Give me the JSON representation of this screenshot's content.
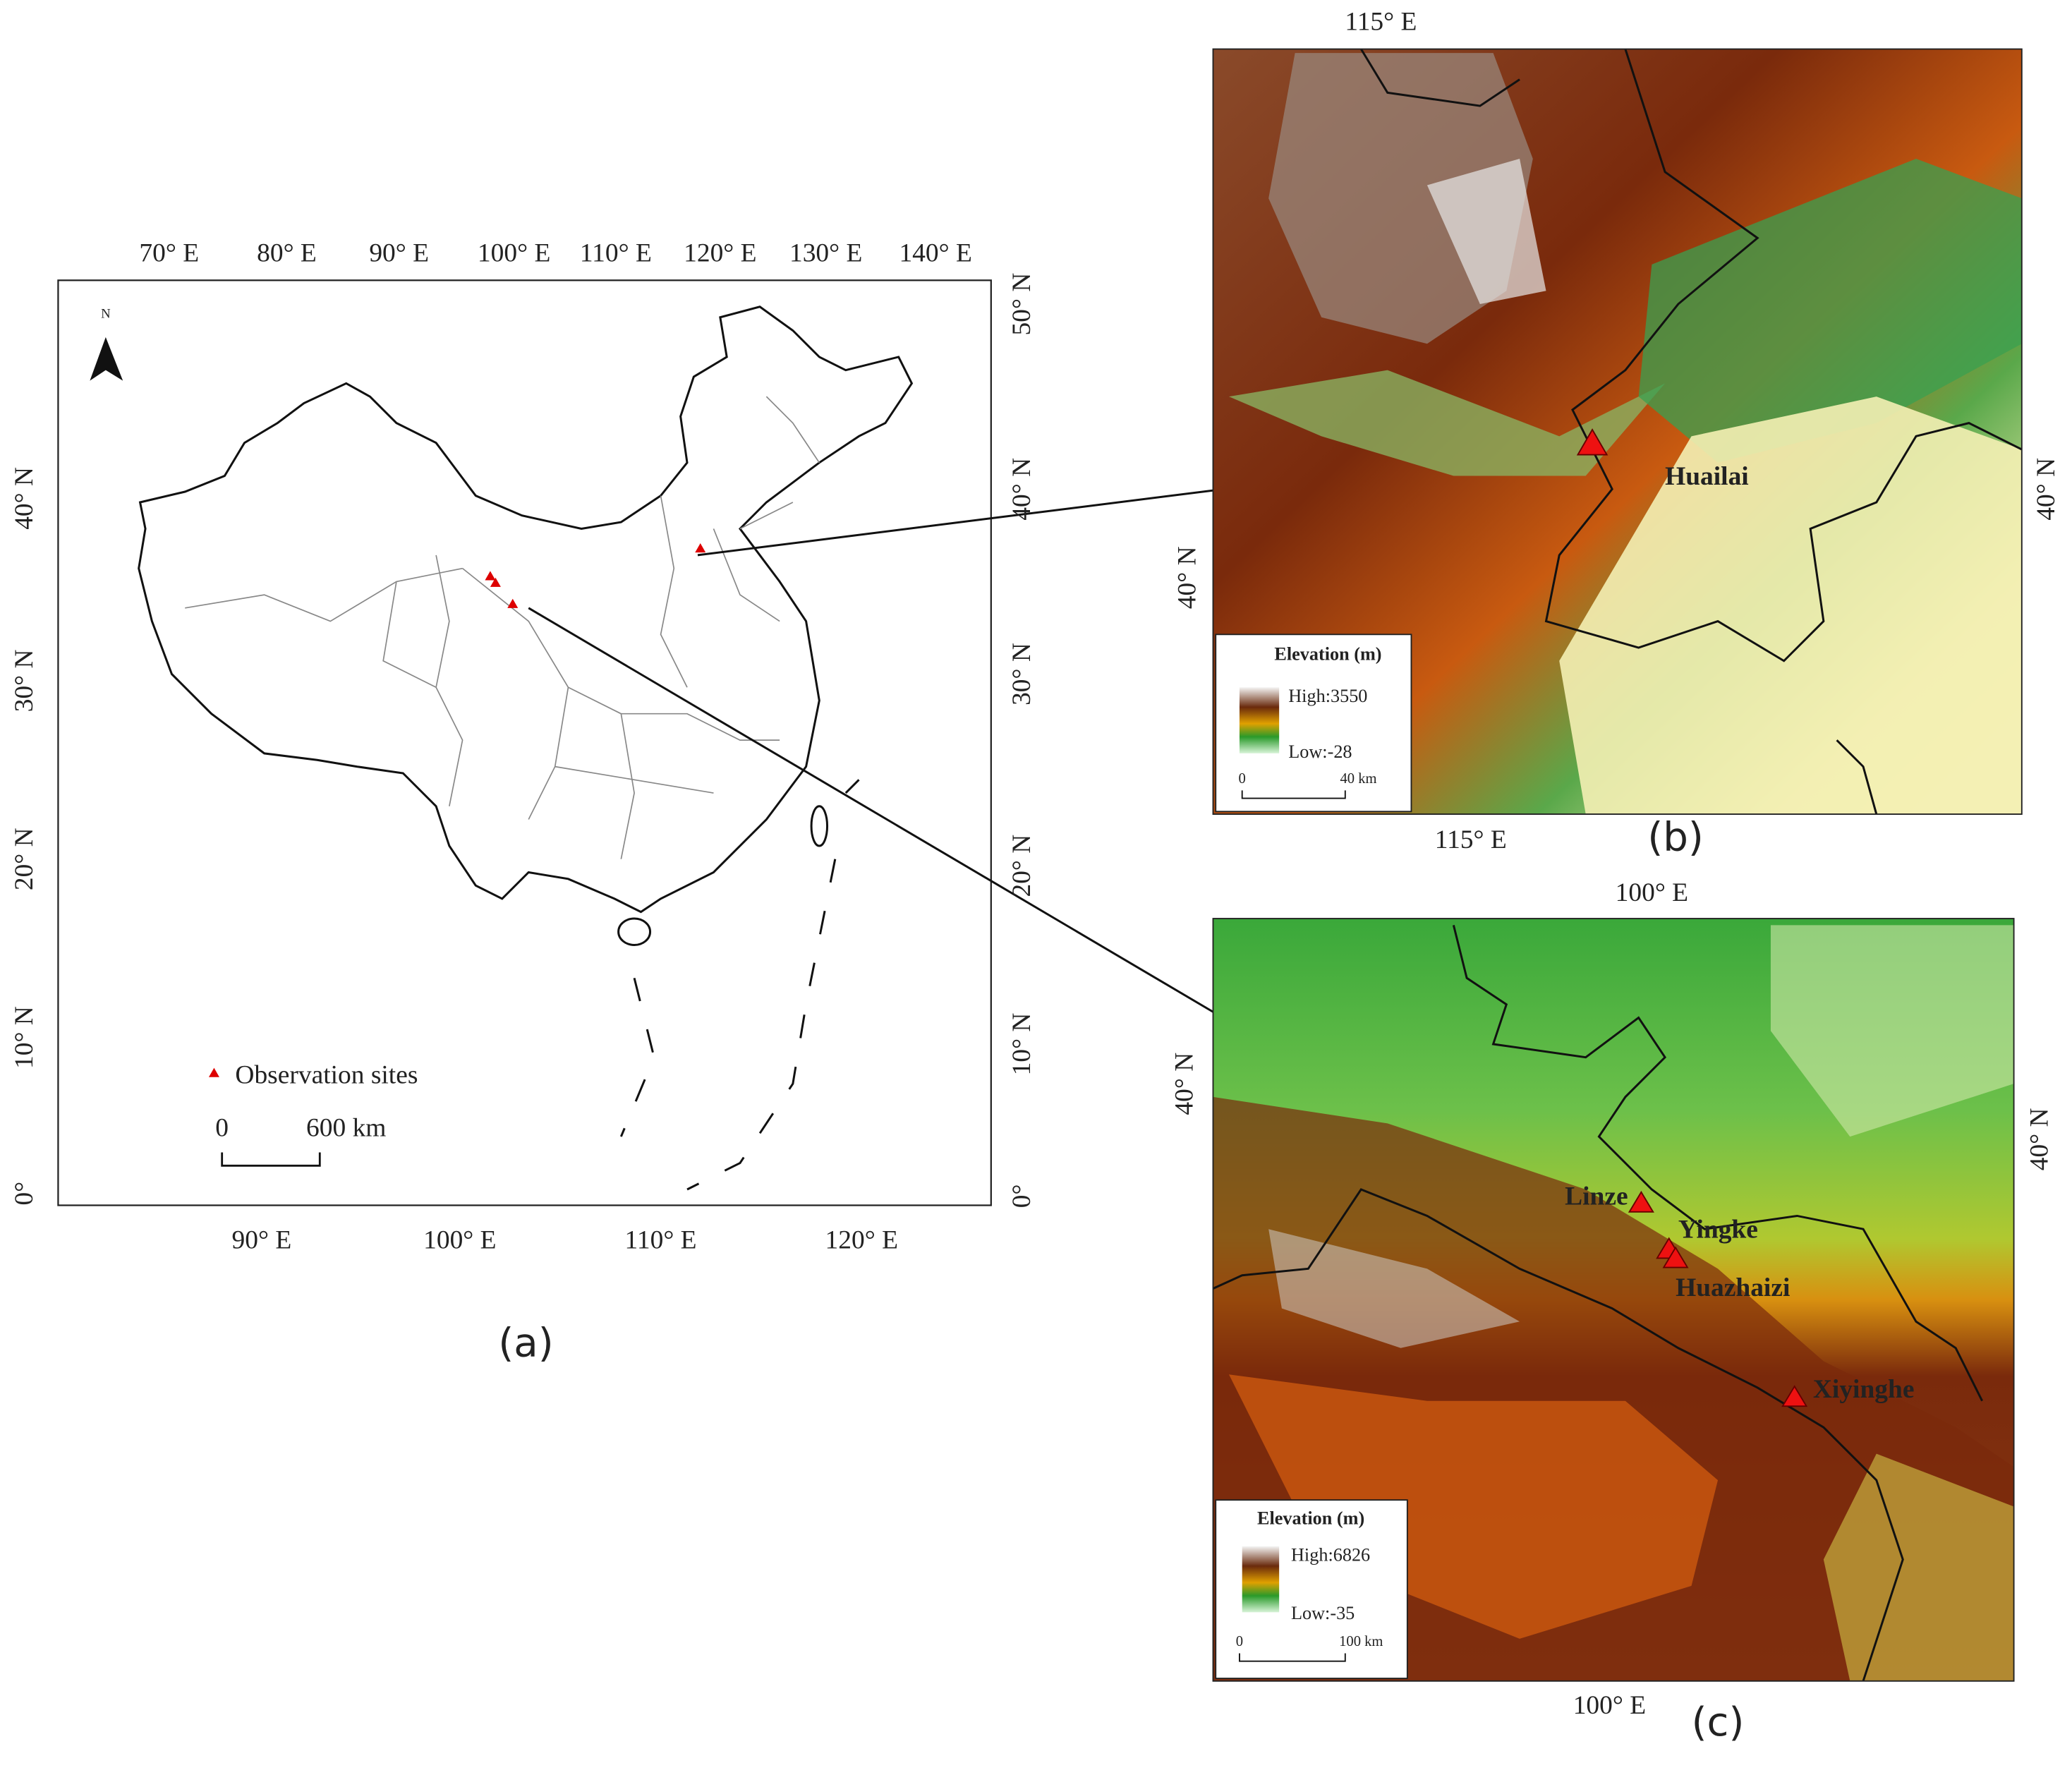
{
  "panel_a": {
    "label": "(a)",
    "top_labels": [
      "70° E",
      "80° E",
      "90° E",
      "100° E",
      "110° E",
      "120° E",
      "130° E",
      "140° E"
    ],
    "right_labels": [
      "50° N",
      "40° N",
      "30° N",
      "20° N",
      "10° N",
      "0°"
    ],
    "left_labels": [
      "40° N",
      "30° N",
      "20° N",
      "10° N",
      "0°"
    ],
    "bottom_labels": [
      "90° E",
      "100° E",
      "110° E",
      "120° E"
    ],
    "north": "N",
    "legend": "Observation sites",
    "scale": [
      "0",
      "600 km"
    ]
  },
  "panel_b": {
    "label": "(b)",
    "top_label": "115° E",
    "bottom_label": "115° E",
    "left_label": "40° N",
    "right_label": "40° N",
    "legend_title": "Elevation (m)",
    "high": "High:3550",
    "low": "Low:-28",
    "scale": [
      "0",
      "40 km"
    ],
    "sites": [
      "Huailai"
    ]
  },
  "panel_c": {
    "label": "(c)",
    "top_label": "100° E",
    "bottom_label": "100° E",
    "left_label": "40° N",
    "right_label": "40° N",
    "legend_title": "Elevation (m)",
    "high": "High:6826",
    "low": "Low:-35",
    "scale": [
      "0",
      "100 km"
    ],
    "sites": [
      "Linze",
      "Yingke",
      "Huazhaizi",
      "Xiyinghe"
    ]
  }
}
